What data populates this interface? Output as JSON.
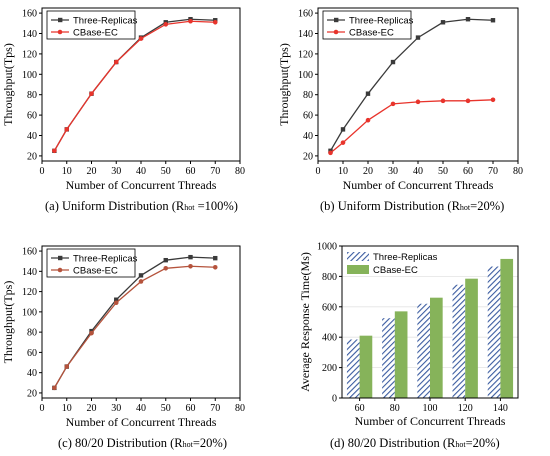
{
  "chart_data": [
    {
      "type": "line",
      "caption": {
        "prefix": "(a) Uniform Distribution (R",
        "sub": "hot",
        "suffix": " =100%)"
      },
      "xlabel": "Number of Concurrent Threads",
      "ylabel": "Throughput(Tps)",
      "xlim": [
        0,
        80
      ],
      "ylim": [
        15,
        165
      ],
      "xticks": [
        0,
        10,
        20,
        30,
        40,
        50,
        60,
        70,
        80
      ],
      "yticks": [
        20,
        40,
        60,
        80,
        100,
        120,
        140,
        160
      ],
      "legend_position": "top-left",
      "x": [
        5,
        10,
        20,
        30,
        40,
        50,
        60,
        70
      ],
      "series": [
        {
          "name": "Three-Replicas",
          "color": "#3a3a3a",
          "marker": "square",
          "values": [
            25,
            46,
            81,
            112,
            136,
            151,
            154,
            153
          ]
        },
        {
          "name": "CBase-EC",
          "color": "#e8342c",
          "marker": "circle",
          "values": [
            25,
            46,
            81,
            112,
            135,
            149,
            152,
            151
          ]
        }
      ]
    },
    {
      "type": "line",
      "caption": {
        "prefix": "(b) Uniform Distribution (R",
        "sub": "hot",
        "suffix": "=20%)"
      },
      "xlabel": "Number of Concurrent Threads",
      "ylabel": "Throughput(Tps)",
      "xlim": [
        0,
        80
      ],
      "ylim": [
        15,
        165
      ],
      "xticks": [
        0,
        10,
        20,
        30,
        40,
        50,
        60,
        70,
        80
      ],
      "yticks": [
        20,
        40,
        60,
        80,
        100,
        120,
        140,
        160
      ],
      "legend_position": "top-left",
      "x": [
        5,
        10,
        20,
        30,
        40,
        50,
        60,
        70
      ],
      "series": [
        {
          "name": "Three-Replicas",
          "color": "#3a3a3a",
          "marker": "square",
          "values": [
            25,
            46,
            81,
            112,
            136,
            151,
            154,
            153
          ]
        },
        {
          "name": "CBase-EC",
          "color": "#e8342c",
          "marker": "circle",
          "values": [
            23,
            33,
            55,
            71,
            73,
            74,
            74,
            75
          ]
        }
      ]
    },
    {
      "type": "line",
      "caption": {
        "prefix": "(c) 80/20 Distribution (R",
        "sub": "hot",
        "suffix": "=20%)"
      },
      "xlabel": "Number of Concurrent Threads",
      "ylabel": "Throughput(Tps)",
      "xlim": [
        0,
        80
      ],
      "ylim": [
        15,
        165
      ],
      "xticks": [
        0,
        10,
        20,
        30,
        40,
        50,
        60,
        70,
        80
      ],
      "yticks": [
        20,
        40,
        60,
        80,
        100,
        120,
        140,
        160
      ],
      "legend_position": "top-left",
      "x": [
        5,
        10,
        20,
        30,
        40,
        50,
        60,
        70
      ],
      "series": [
        {
          "name": "Three-Replicas",
          "color": "#3a3a3a",
          "marker": "square",
          "values": [
            25,
            46,
            81,
            112,
            136,
            151,
            154,
            153
          ]
        },
        {
          "name": "CBase-EC",
          "color": "#b5533c",
          "marker": "circle",
          "values": [
            25,
            46,
            79,
            109,
            130,
            143,
            145,
            144
          ]
        }
      ]
    },
    {
      "type": "bar",
      "caption": {
        "prefix": "(d) 80/20 Distribution (R",
        "sub": "hot",
        "suffix": "=20%)"
      },
      "xlabel": "Number of Concurrent Threads",
      "ylabel": "Average Response Time(Ms)",
      "ylim": [
        0,
        1000
      ],
      "yticks": [
        0,
        200,
        400,
        600,
        800,
        1000
      ],
      "categories": [
        "60",
        "80",
        "100",
        "120",
        "140"
      ],
      "legend_position": "top-left",
      "series": [
        {
          "name": "Three-Replicas",
          "color": "#3a5ba0",
          "pattern": "hatched",
          "values": [
            385,
            525,
            620,
            745,
            865
          ]
        },
        {
          "name": "CBase-EC",
          "color": "#86b35a",
          "pattern": "solid",
          "values": [
            410,
            570,
            660,
            785,
            915
          ]
        }
      ]
    }
  ]
}
